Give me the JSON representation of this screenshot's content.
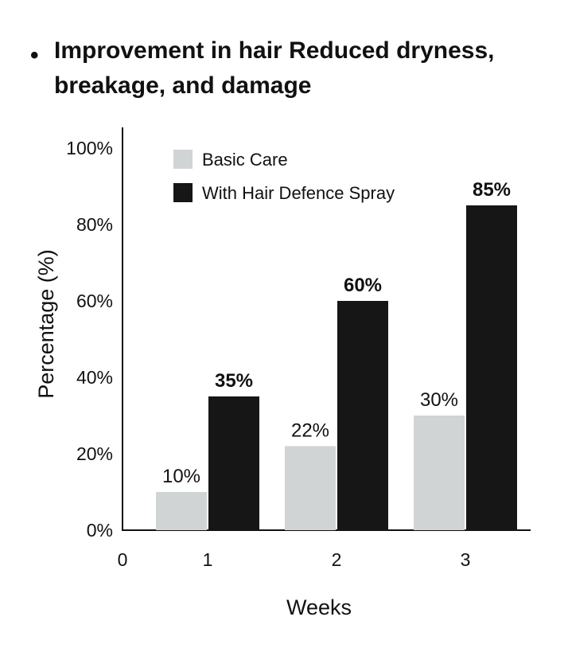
{
  "heading": {
    "bullet": "•",
    "text": "Improvement in hair Reduced dryness, breakage, and damage"
  },
  "chart_data": {
    "type": "bar",
    "categories": [
      "1",
      "2",
      "3"
    ],
    "x_origin_label": "0",
    "series": [
      {
        "name": "Basic Care",
        "values": [
          10,
          22,
          30
        ],
        "labels": [
          "10%",
          "22%",
          "30%"
        ],
        "color": "#d1d4d5",
        "label_bold": false
      },
      {
        "name": "With Hair Defence Spray",
        "values": [
          35,
          60,
          85
        ],
        "labels": [
          "35%",
          "60%",
          "85%"
        ],
        "color": "#161616",
        "label_bold": true
      }
    ],
    "xlabel": "Weeks",
    "ylabel": "Percentage (%)",
    "ylim": [
      0,
      100
    ],
    "yticks": [
      0,
      20,
      40,
      60,
      80,
      100
    ],
    "ytick_labels": [
      "0%",
      "20%",
      "40%",
      "60%",
      "80%",
      "100%"
    ],
    "legend_position": "top-left",
    "grid": false
  }
}
